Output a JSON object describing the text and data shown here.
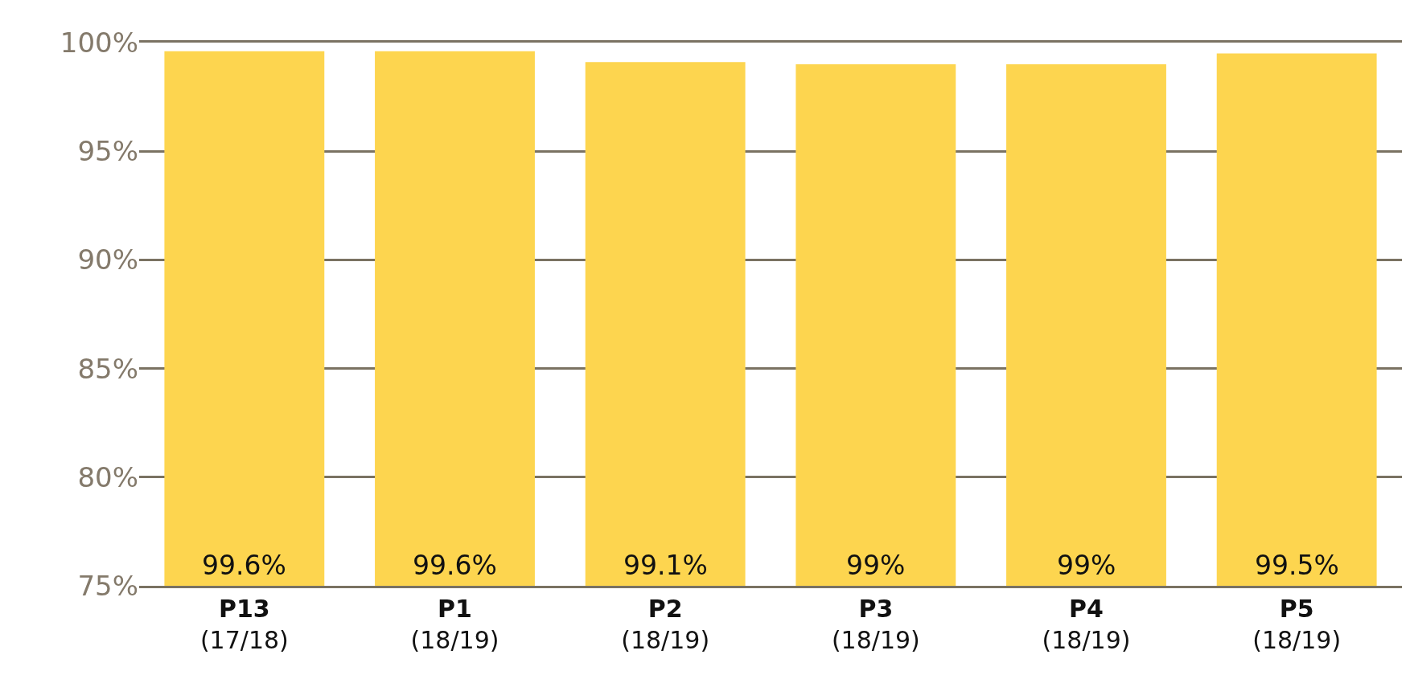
{
  "chart_data": {
    "type": "bar",
    "categories": [
      "P13\n(17/18)",
      "P1\n(18/19)",
      "P2\n(18/19)",
      "P3\n(18/19)",
      "P4\n(18/19)",
      "P5\n(18/19)"
    ],
    "values": [
      99.6,
      99.6,
      99.1,
      99,
      99,
      99.5
    ],
    "value_labels": [
      "99.6%",
      "99.6%",
      "99.1%",
      "99%",
      "99%",
      "99.5%"
    ],
    "color": "#fdd54f",
    "ylim": [
      75,
      100
    ],
    "yticks": [
      {
        "value": 75,
        "label": "75%"
      },
      {
        "value": 80,
        "label": "80%"
      },
      {
        "value": 85,
        "label": "85%"
      },
      {
        "value": 90,
        "label": "90%"
      },
      {
        "value": 95,
        "label": "95%"
      },
      {
        "value": 100,
        "label": "100%"
      }
    ],
    "grid": "y",
    "legend": false
  }
}
